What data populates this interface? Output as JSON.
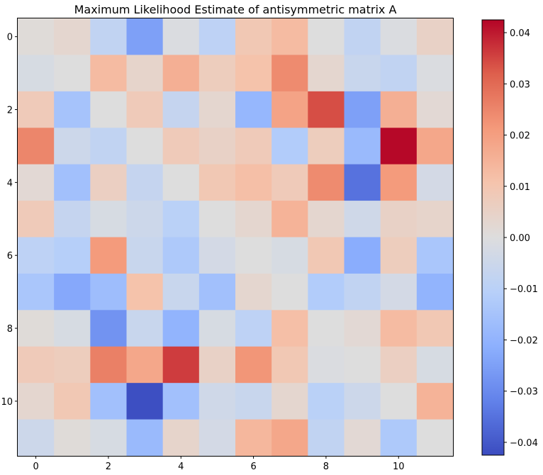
{
  "chart_data": {
    "type": "heatmap",
    "title": "Maximum Likelihood Estimate of antisymmetric matrix A",
    "colormap": "coolwarm",
    "vmin": -0.0425,
    "vmax": 0.0425,
    "x_ticks": [
      0,
      2,
      4,
      6,
      8,
      10
    ],
    "y_ticks": [
      0,
      2,
      4,
      6,
      8,
      10
    ],
    "colorbar_ticks": [
      0.04,
      0.03,
      0.02,
      0.01,
      0.0,
      -0.01,
      -0.02,
      -0.03,
      -0.04
    ],
    "colorbar_tick_labels": [
      "0.04",
      "0.03",
      "0.02",
      "0.01",
      "0.00",
      "−0.01",
      "−0.02",
      "−0.03",
      "−0.04"
    ],
    "matrix": [
      [
        0.001,
        0.003,
        -0.008,
        -0.025,
        -0.001,
        -0.009,
        0.009,
        0.013,
        0.0,
        -0.008,
        -0.001,
        0.005
      ],
      [
        -0.002,
        0.0,
        0.013,
        0.004,
        0.016,
        0.007,
        0.011,
        0.024,
        0.003,
        -0.006,
        -0.008,
        -0.001
      ],
      [
        0.008,
        -0.015,
        0.0,
        0.008,
        -0.007,
        0.003,
        -0.019,
        0.019,
        0.034,
        -0.025,
        0.016,
        0.002
      ],
      [
        0.025,
        -0.005,
        -0.008,
        0.0,
        0.008,
        0.005,
        0.008,
        -0.012,
        0.007,
        -0.018,
        0.042,
        0.018
      ],
      [
        0.002,
        -0.016,
        0.006,
        -0.007,
        0.0,
        0.009,
        0.012,
        0.008,
        0.024,
        -0.035,
        0.021,
        -0.003
      ],
      [
        0.008,
        -0.007,
        -0.002,
        -0.005,
        -0.01,
        0.0,
        0.003,
        0.015,
        0.003,
        -0.004,
        0.005,
        0.004
      ],
      [
        -0.009,
        -0.011,
        0.021,
        -0.006,
        -0.013,
        -0.003,
        0.0,
        -0.002,
        0.009,
        -0.022,
        0.007,
        -0.014
      ],
      [
        -0.014,
        -0.023,
        -0.017,
        0.011,
        -0.006,
        -0.016,
        0.003,
        0.0,
        -0.012,
        -0.008,
        -0.003,
        -0.02
      ],
      [
        0.001,
        -0.002,
        -0.028,
        -0.006,
        -0.02,
        -0.002,
        -0.009,
        0.012,
        0.0,
        0.002,
        0.013,
        0.009
      ],
      [
        0.008,
        0.007,
        0.026,
        0.018,
        0.036,
        0.005,
        0.022,
        0.009,
        -0.001,
        0.0,
        0.006,
        -0.002
      ],
      [
        0.003,
        0.009,
        -0.016,
        -0.042,
        -0.016,
        -0.004,
        -0.006,
        0.003,
        -0.01,
        -0.005,
        0.0,
        0.015
      ],
      [
        -0.005,
        0.001,
        -0.002,
        -0.018,
        0.004,
        -0.003,
        0.014,
        0.018,
        -0.008,
        0.002,
        -0.013,
        0.0
      ]
    ]
  }
}
